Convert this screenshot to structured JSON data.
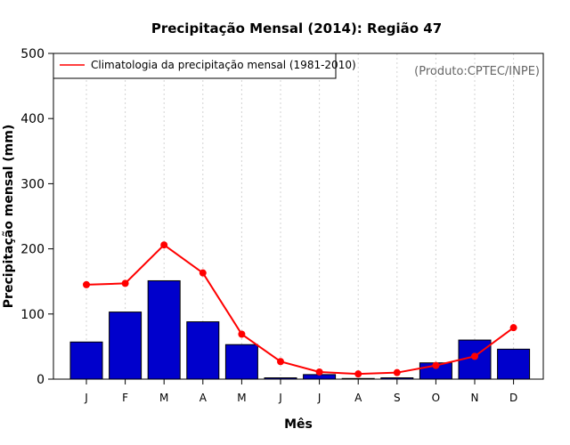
{
  "chart_data": {
    "type": "bar",
    "title": "Precipitação Mensal (2014): Região 47",
    "xlabel": "Mês",
    "ylabel": "Precipitação mensal (mm)",
    "ylim": [
      0,
      500
    ],
    "yticks": [
      0,
      100,
      200,
      300,
      400,
      500
    ],
    "categories": [
      "J",
      "F",
      "M",
      "A",
      "M",
      "J",
      "J",
      "A",
      "S",
      "O",
      "N",
      "D"
    ],
    "grid": "vertical dotted",
    "legend_position": "top-left",
    "annotation": "(Produto:CPTEC/INPE)",
    "series": [
      {
        "name": "Precipitação mensal (2014)",
        "kind": "bar",
        "color": "#0000cc",
        "values": [
          57,
          103,
          151,
          88,
          53,
          2,
          7,
          1,
          2,
          25,
          60,
          46
        ]
      },
      {
        "name": "Climatologia da precipitação mensal (1981-2010)",
        "kind": "line",
        "color": "#ff0000",
        "values": [
          145,
          147,
          206,
          163,
          69,
          27,
          11,
          8,
          10,
          21,
          35,
          79
        ]
      }
    ]
  }
}
